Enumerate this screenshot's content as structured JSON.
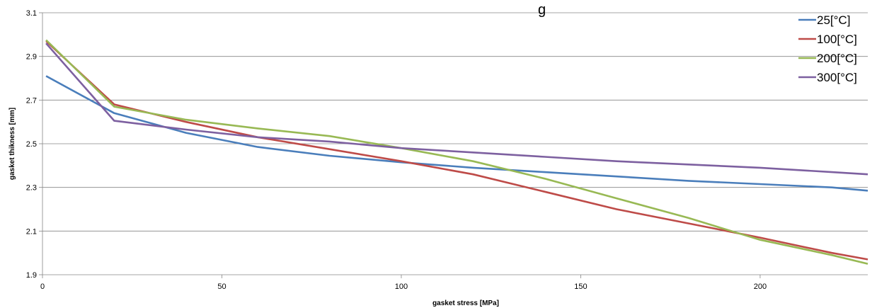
{
  "chart_data": {
    "type": "line",
    "title": "g",
    "xlabel": "gasket stress [MPa]",
    "ylabel": "gasket thikness [mm]",
    "xlim": [
      0,
      230
    ],
    "ylim": [
      1.9,
      3.1
    ],
    "x_ticks": [
      0,
      50,
      100,
      150,
      200
    ],
    "y_ticks": [
      1.9,
      2.1,
      2.3,
      2.5,
      2.7,
      2.9,
      3.1
    ],
    "grid": "horizontal",
    "legend_position": "top-right",
    "series": [
      {
        "name": "25[°C]",
        "color": "#4a7ebb",
        "x": [
          1,
          20,
          40,
          60,
          80,
          100,
          120,
          140,
          160,
          180,
          200,
          220,
          230
        ],
        "y": [
          2.81,
          2.64,
          2.55,
          2.485,
          2.445,
          2.415,
          2.39,
          2.37,
          2.35,
          2.33,
          2.315,
          2.3,
          2.285
        ]
      },
      {
        "name": "100[°C]",
        "color": "#be4b48",
        "x": [
          1,
          20,
          40,
          60,
          80,
          100,
          120,
          140,
          160,
          180,
          200,
          220,
          230
        ],
        "y": [
          2.97,
          2.68,
          2.6,
          2.53,
          2.475,
          2.42,
          2.36,
          2.28,
          2.2,
          2.135,
          2.07,
          2.0,
          1.97
        ]
      },
      {
        "name": "200[°C]",
        "color": "#98b954",
        "x": [
          1,
          20,
          40,
          60,
          80,
          100,
          120,
          140,
          160,
          180,
          200,
          220,
          230
        ],
        "y": [
          2.975,
          2.67,
          2.61,
          2.57,
          2.535,
          2.48,
          2.42,
          2.34,
          2.25,
          2.16,
          2.06,
          1.99,
          1.95
        ]
      },
      {
        "name": "300[°C]",
        "color": "#7d60a0",
        "x": [
          1,
          20,
          40,
          60,
          80,
          100,
          120,
          140,
          160,
          180,
          200,
          220,
          230
        ],
        "y": [
          2.96,
          2.605,
          2.565,
          2.53,
          2.51,
          2.48,
          2.46,
          2.44,
          2.42,
          2.405,
          2.39,
          2.37,
          2.36
        ]
      }
    ]
  }
}
